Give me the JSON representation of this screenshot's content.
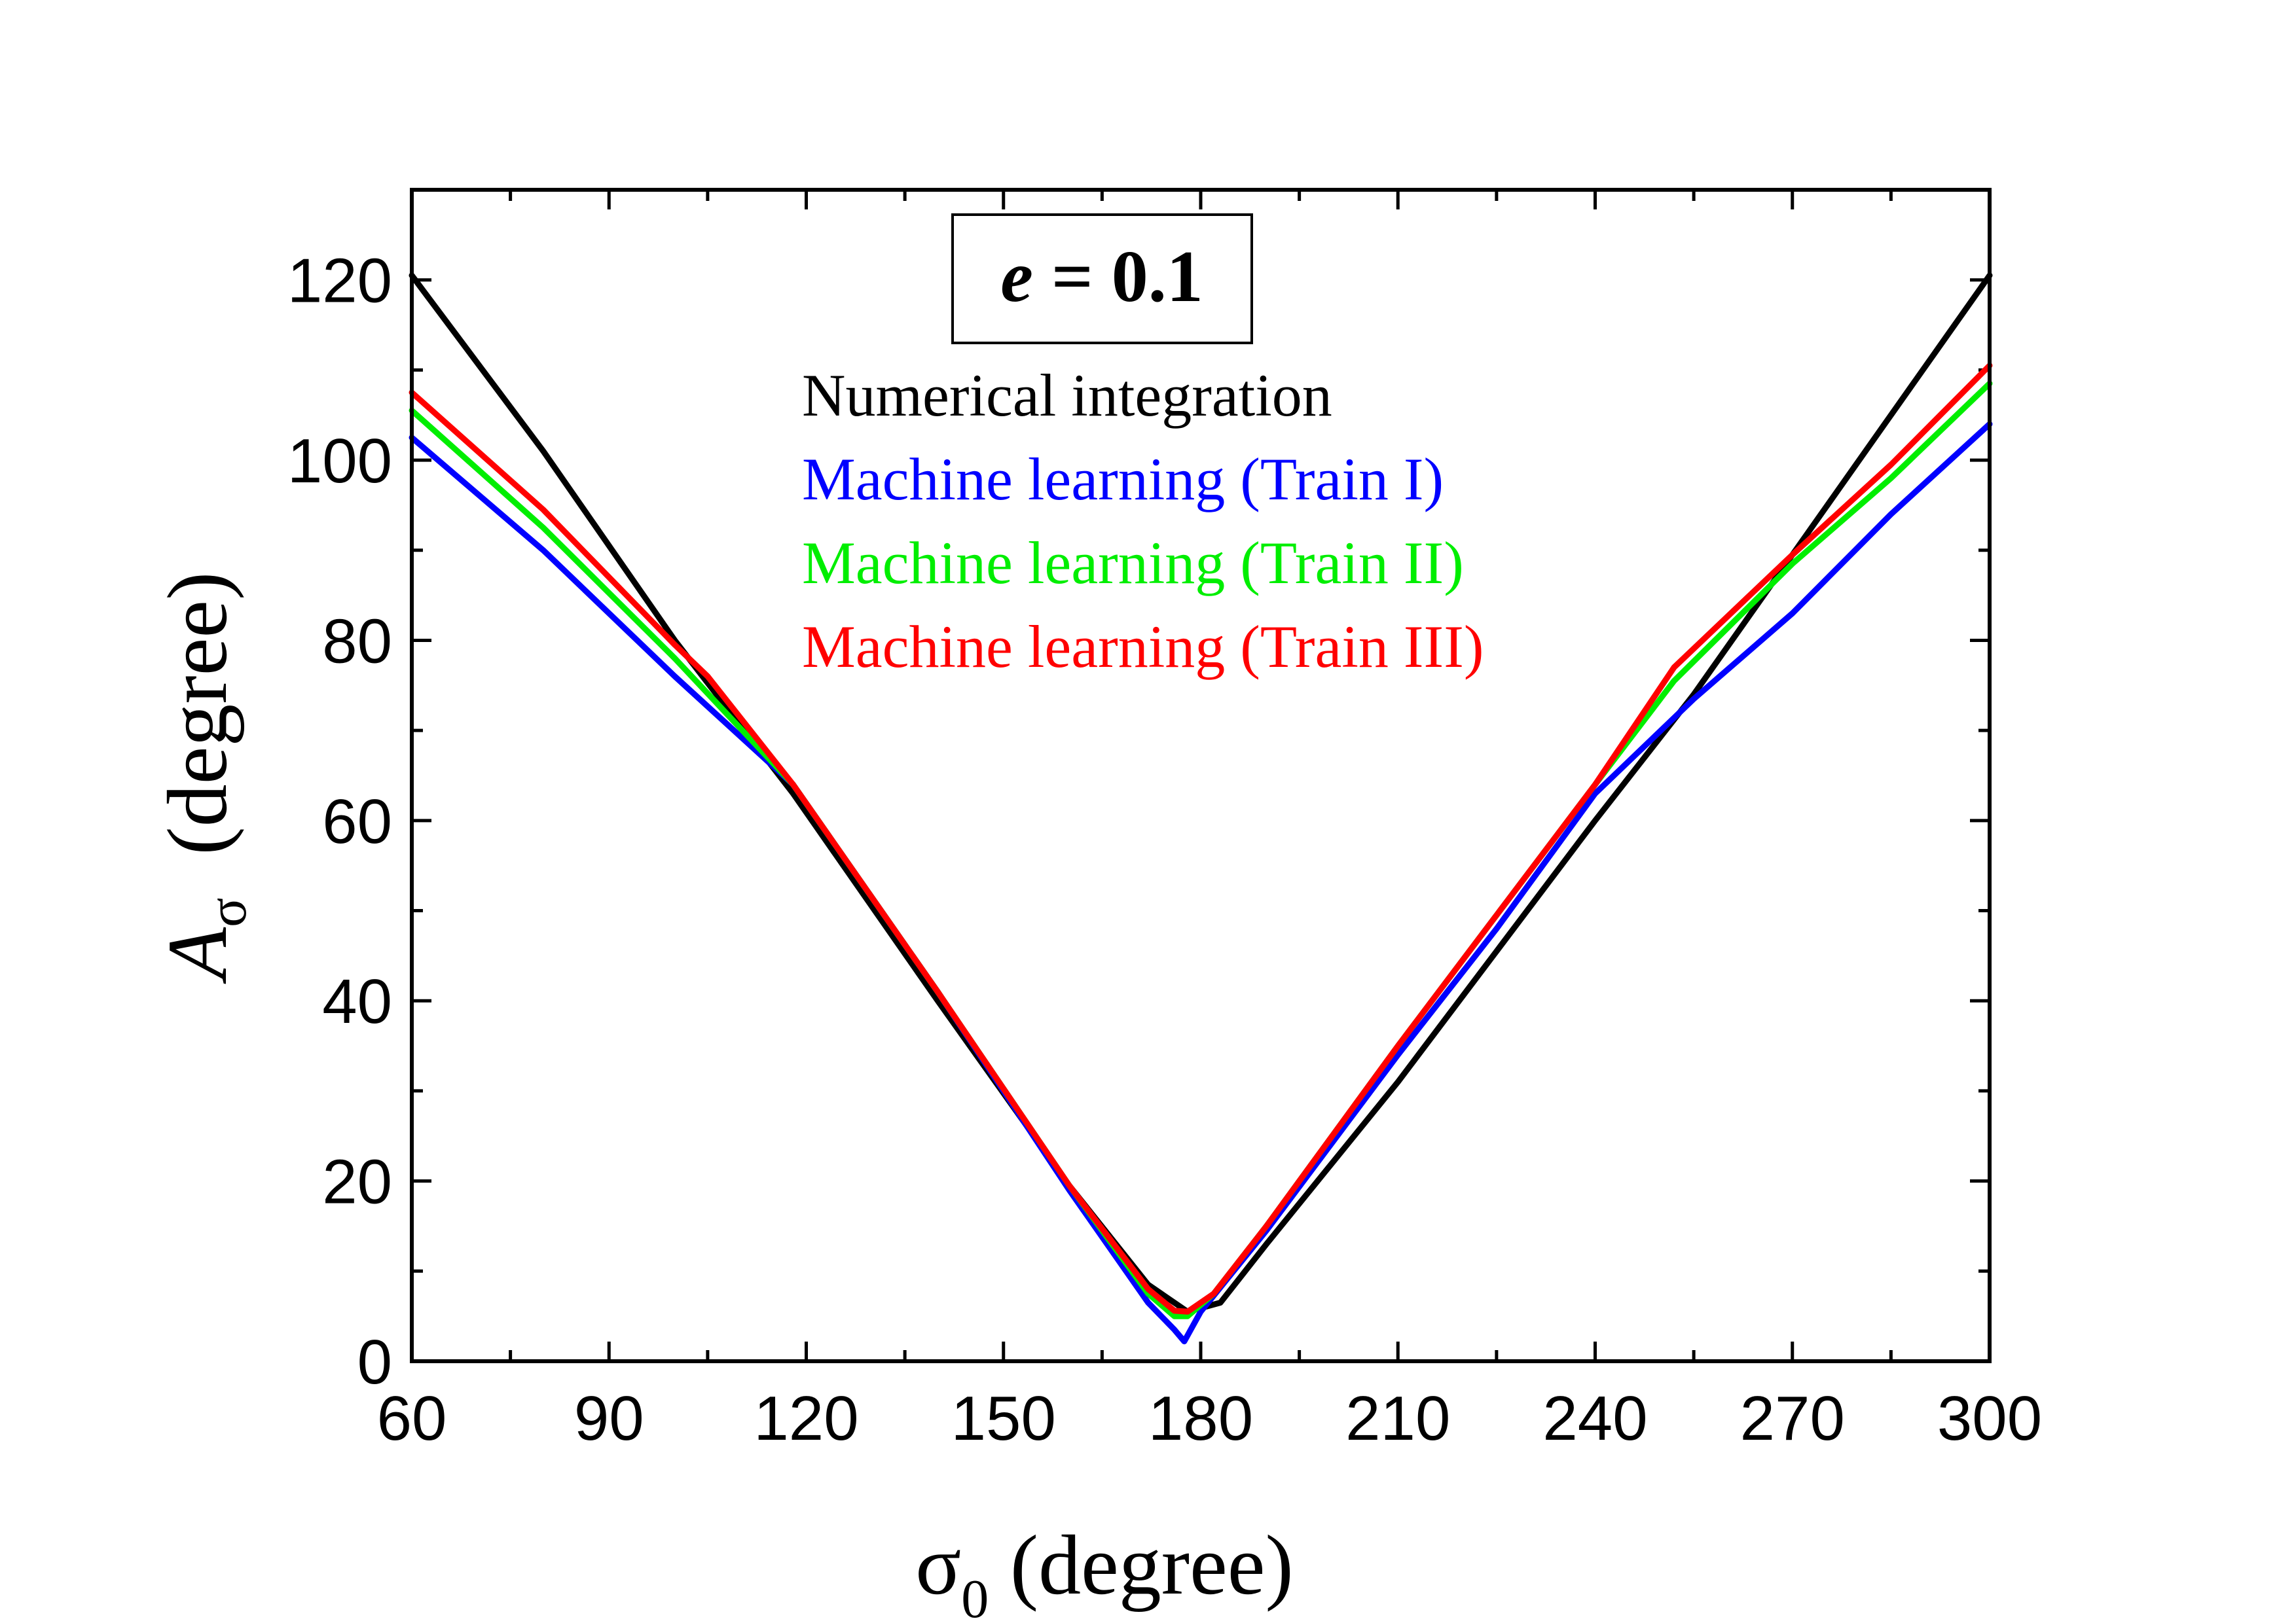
{
  "chart_data": {
    "type": "line",
    "annotation_box": {
      "variable": "e",
      "equals": " = ",
      "value": "0.1"
    },
    "xlabel": {
      "main": "σ",
      "sub": "0",
      "unit": " (degree)"
    },
    "ylabel": {
      "main": "A",
      "sub": "σ",
      "unit": "  (degree)"
    },
    "xlim": [
      60,
      300
    ],
    "ylim": [
      0,
      130
    ],
    "xticks": [
      60,
      90,
      120,
      150,
      180,
      210,
      240,
      270,
      300
    ],
    "yticks": [
      0,
      20,
      40,
      60,
      80,
      100,
      120
    ],
    "x_minor_step": 15,
    "y_minor_step": 10,
    "legend_position": "top-center",
    "series": [
      {
        "name": "Numerical integration",
        "color": "#000000",
        "x": [
          60,
          80,
          100,
          118,
          140,
          160,
          172,
          178,
          183,
          190,
          210,
          240,
          255,
          270,
          285,
          300
        ],
        "y": [
          120.5,
          101,
          80,
          63,
          40,
          19.5,
          8.5,
          5.5,
          6.5,
          13,
          31,
          60,
          74,
          89.5,
          105,
          120.5
        ]
      },
      {
        "name": "Machine learning (Train I)",
        "color": "#0000ff",
        "x": [
          60,
          80,
          100,
          118,
          140,
          160,
          172,
          176,
          177.5,
          180,
          190,
          210,
          225,
          240,
          255,
          270,
          285,
          300
        ],
        "y": [
          102.5,
          90,
          76,
          64,
          41,
          19,
          6.5,
          3.5,
          2.2,
          5.5,
          14.5,
          34,
          48,
          63,
          73.5,
          83,
          94,
          104
        ]
      },
      {
        "name": "Machine learning (Train II)",
        "color": "#00ee00",
        "x": [
          60,
          80,
          100,
          118,
          140,
          160,
          172,
          176,
          178,
          182,
          190,
          210,
          225,
          240,
          252,
          270,
          285,
          300
        ],
        "y": [
          105.5,
          92.5,
          78,
          64,
          41,
          19.5,
          7.5,
          5,
          5,
          7.5,
          15,
          35,
          49.5,
          64,
          75.5,
          88.5,
          98,
          108.5
        ]
      },
      {
        "name": "Machine learning (Train III)",
        "color": "#ff0000",
        "x": [
          60,
          80,
          100,
          105,
          118,
          140,
          160,
          172,
          176,
          178,
          182,
          190,
          210,
          225,
          240,
          252,
          270,
          285,
          300
        ],
        "y": [
          107.5,
          94.5,
          79.5,
          76,
          64,
          41,
          19.5,
          8,
          5.6,
          5.5,
          7.5,
          15,
          35,
          49.5,
          64,
          77,
          89.5,
          99.5,
          110.5
        ]
      }
    ]
  }
}
